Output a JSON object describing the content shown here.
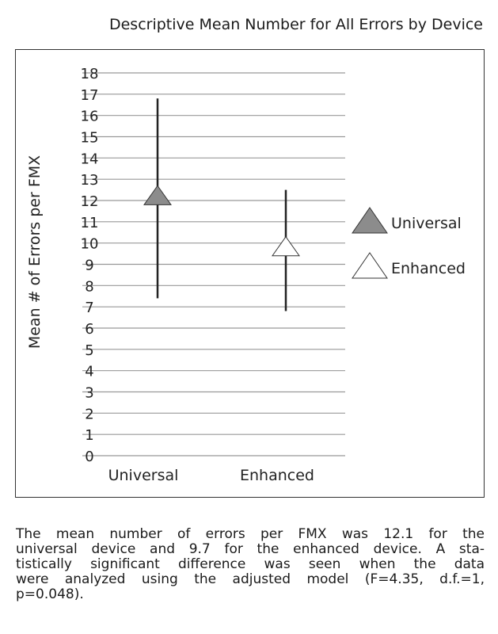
{
  "chart_data": {
    "type": "error-bar",
    "title": "Descriptive Mean Number for All Errors by Device",
    "xlabel": "",
    "ylabel": "Mean # of Errors per FMX",
    "ylim": [
      0,
      18
    ],
    "yticks": [
      0,
      1,
      2,
      3,
      4,
      5,
      6,
      7,
      8,
      9,
      10,
      11,
      12,
      13,
      14,
      15,
      16,
      17,
      18
    ],
    "grid": true,
    "legend_position": "right",
    "categories": [
      "Universal",
      "Enhanced"
    ],
    "series": [
      {
        "name": "Universal",
        "category": "Universal",
        "mean": 12.1,
        "low": 7.4,
        "high": 16.8,
        "marker": "triangle",
        "fill": "#8c8c8c"
      },
      {
        "name": "Enhanced",
        "category": "Enhanced",
        "mean": 9.7,
        "low": 6.8,
        "high": 12.5,
        "marker": "triangle",
        "fill": "#ffffff"
      }
    ]
  },
  "caption": {
    "lines": [
      "The mean number of errors per FMX was 12.1 for the",
      "universal device and 9.7 for the enhanced device. A sta-",
      "tistically significant difference was seen when the data",
      "were analyzed using the adjusted model (F=4.35, d.f.=1,",
      "p=0.048)."
    ]
  }
}
